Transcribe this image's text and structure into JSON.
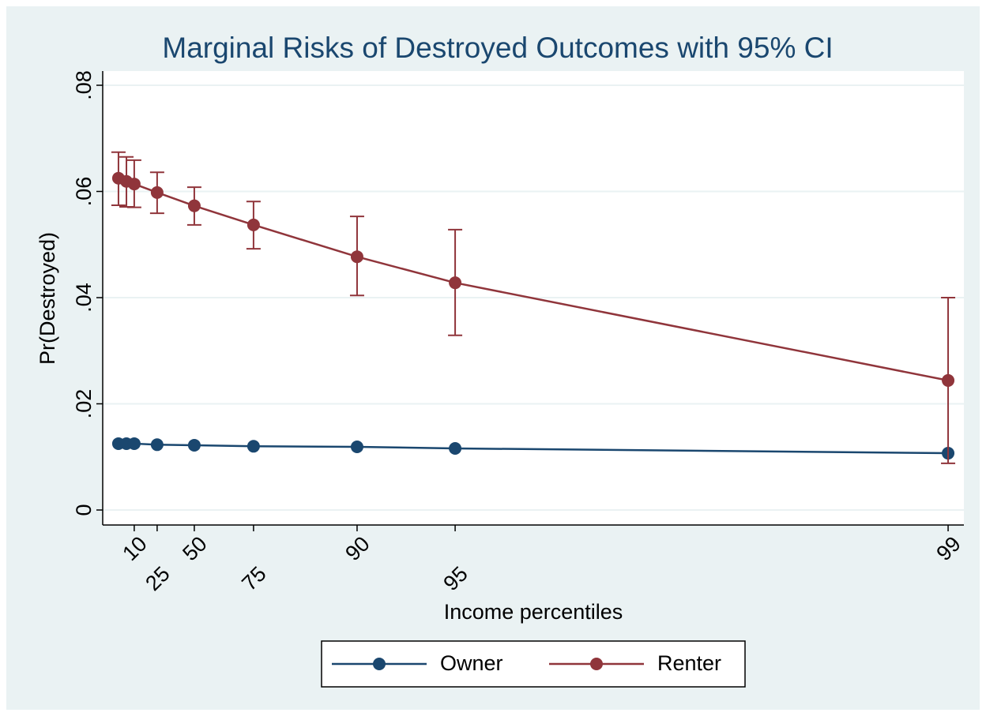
{
  "chart_data": {
    "type": "line",
    "title": "Marginal Risks of Destroyed Outcomes with 95% CI",
    "x_label": "Income percentiles",
    "y_label": "Pr(Destroyed)",
    "x": [
      0,
      0.48,
      0.95,
      2.33,
      4.57,
      8.14,
      14.38,
      20.29,
      50
    ],
    "xlim": [
      -0.95,
      50.95
    ],
    "xticks": [
      {
        "value": 0.95,
        "label": "10"
      },
      {
        "value": 2.33,
        "label": "25"
      },
      {
        "value": 4.57,
        "label": "50"
      },
      {
        "value": 8.14,
        "label": "75"
      },
      {
        "value": 14.38,
        "label": "90"
      },
      {
        "value": 20.29,
        "label": "95"
      },
      {
        "value": 50,
        "label": "99"
      }
    ],
    "ylim": [
      0,
      0.08
    ],
    "yticks": [
      0,
      {
        "value": 0.02,
        "label": ".02"
      },
      {
        "value": 0.04,
        "label": ".04"
      },
      {
        "value": 0.06,
        "label": ".06"
      },
      {
        "value": 0.08,
        "label": ".08"
      }
    ],
    "grid": true,
    "legend": "bottom",
    "series": [
      {
        "name": "Owner",
        "color": "#1a476f",
        "values": [
          0.0125,
          0.0125,
          0.0125,
          0.0123,
          0.0122,
          0.012,
          0.0119,
          0.0116,
          0.0107
        ]
      },
      {
        "name": "Renter",
        "color": "#90353b",
        "values": [
          0.0625,
          0.0619,
          0.0614,
          0.0598,
          0.0573,
          0.0537,
          0.0477,
          0.0428,
          0.0244
        ],
        "lower": [
          0.0574,
          0.0571,
          0.057,
          0.0559,
          0.0537,
          0.0492,
          0.0404,
          0.0329,
          0.0088
        ],
        "upper": [
          0.0674,
          0.0665,
          0.0659,
          0.0636,
          0.0608,
          0.0581,
          0.0553,
          0.0528,
          0.04
        ]
      }
    ]
  }
}
